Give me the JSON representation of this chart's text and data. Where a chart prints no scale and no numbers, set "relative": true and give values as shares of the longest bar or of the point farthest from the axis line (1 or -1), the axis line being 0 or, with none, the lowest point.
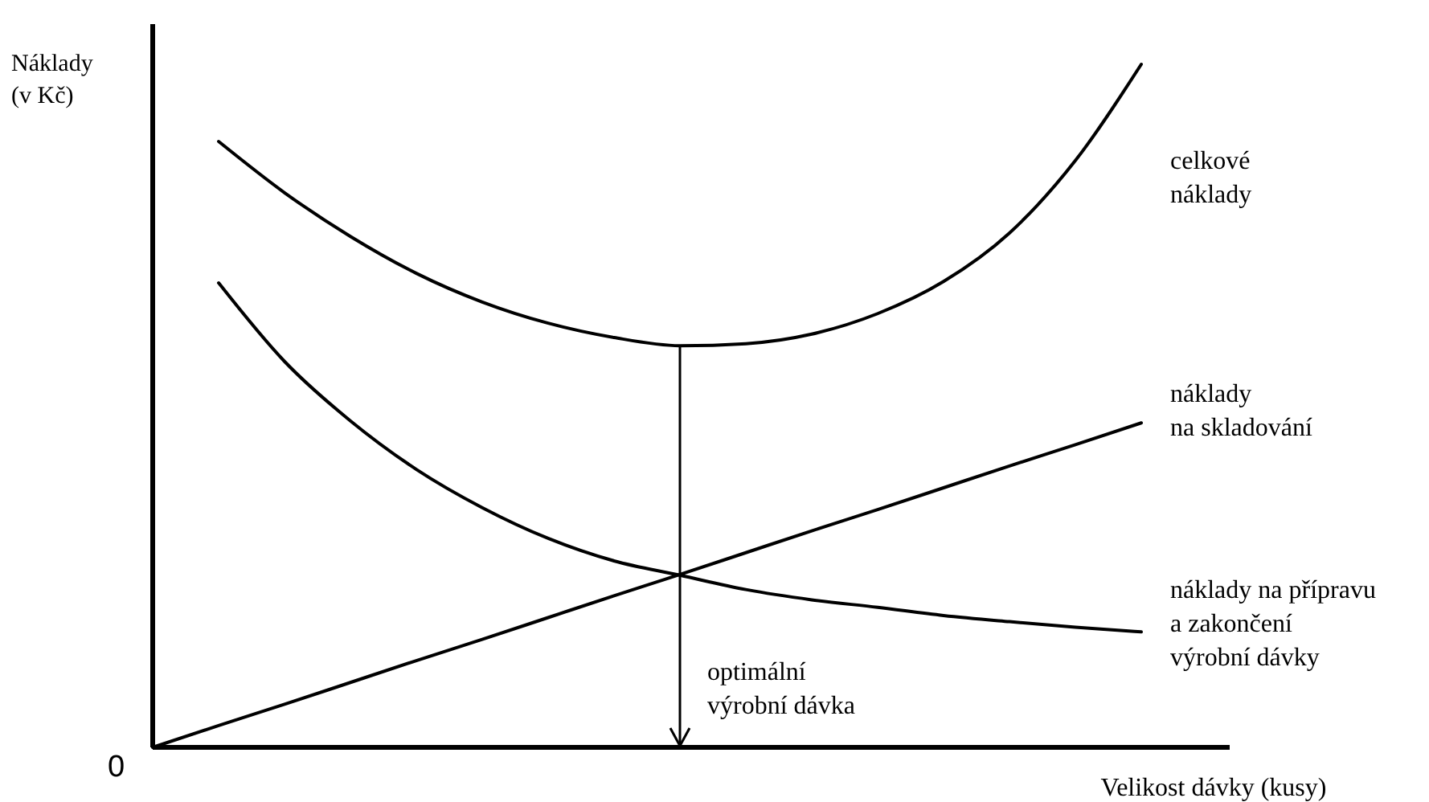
{
  "chart_data": {
    "type": "line",
    "relative": true,
    "xlabel": "Velikost dávky (kusy)",
    "ylabel": "Náklady\n(v Kč)",
    "categories": [
      null,
      null,
      null,
      null,
      null,
      null,
      null,
      null,
      null,
      null,
      null,
      null,
      null,
      null,
      null,
      null
    ],
    "series": [
      {
        "name": "celkové\nnáklady",
        "color": "#000000",
        "values": [
          null,
          0.887,
          0.812,
          0.748,
          0.694,
          0.652,
          0.621,
          0.6,
          0.588,
          0.591,
          0.605,
          0.635,
          0.682,
          0.753,
          0.859,
          1
        ]
      },
      {
        "name": "náklady\nna skladování",
        "color": "#000000",
        "values": [
          0,
          0.032,
          0.063,
          0.095,
          0.127,
          0.158,
          0.19,
          0.222,
          0.253,
          0.285,
          0.317,
          0.348,
          0.38,
          0.412,
          0.443,
          0.475
        ]
      },
      {
        "name": "náklady na přípravu\na zakončení\nvýrobní dávky",
        "color": "#000000",
        "values": [
          null,
          0.68,
          0.565,
          0.478,
          0.407,
          0.351,
          0.306,
          0.273,
          0.252,
          0.231,
          0.216,
          0.205,
          0.193,
          0.184,
          0.176,
          0.169
        ]
      }
    ],
    "annotations": [
      "0",
      "optimální\nvýrobní dávka"
    ],
    "marker": "none",
    "line_style": "solid"
  }
}
